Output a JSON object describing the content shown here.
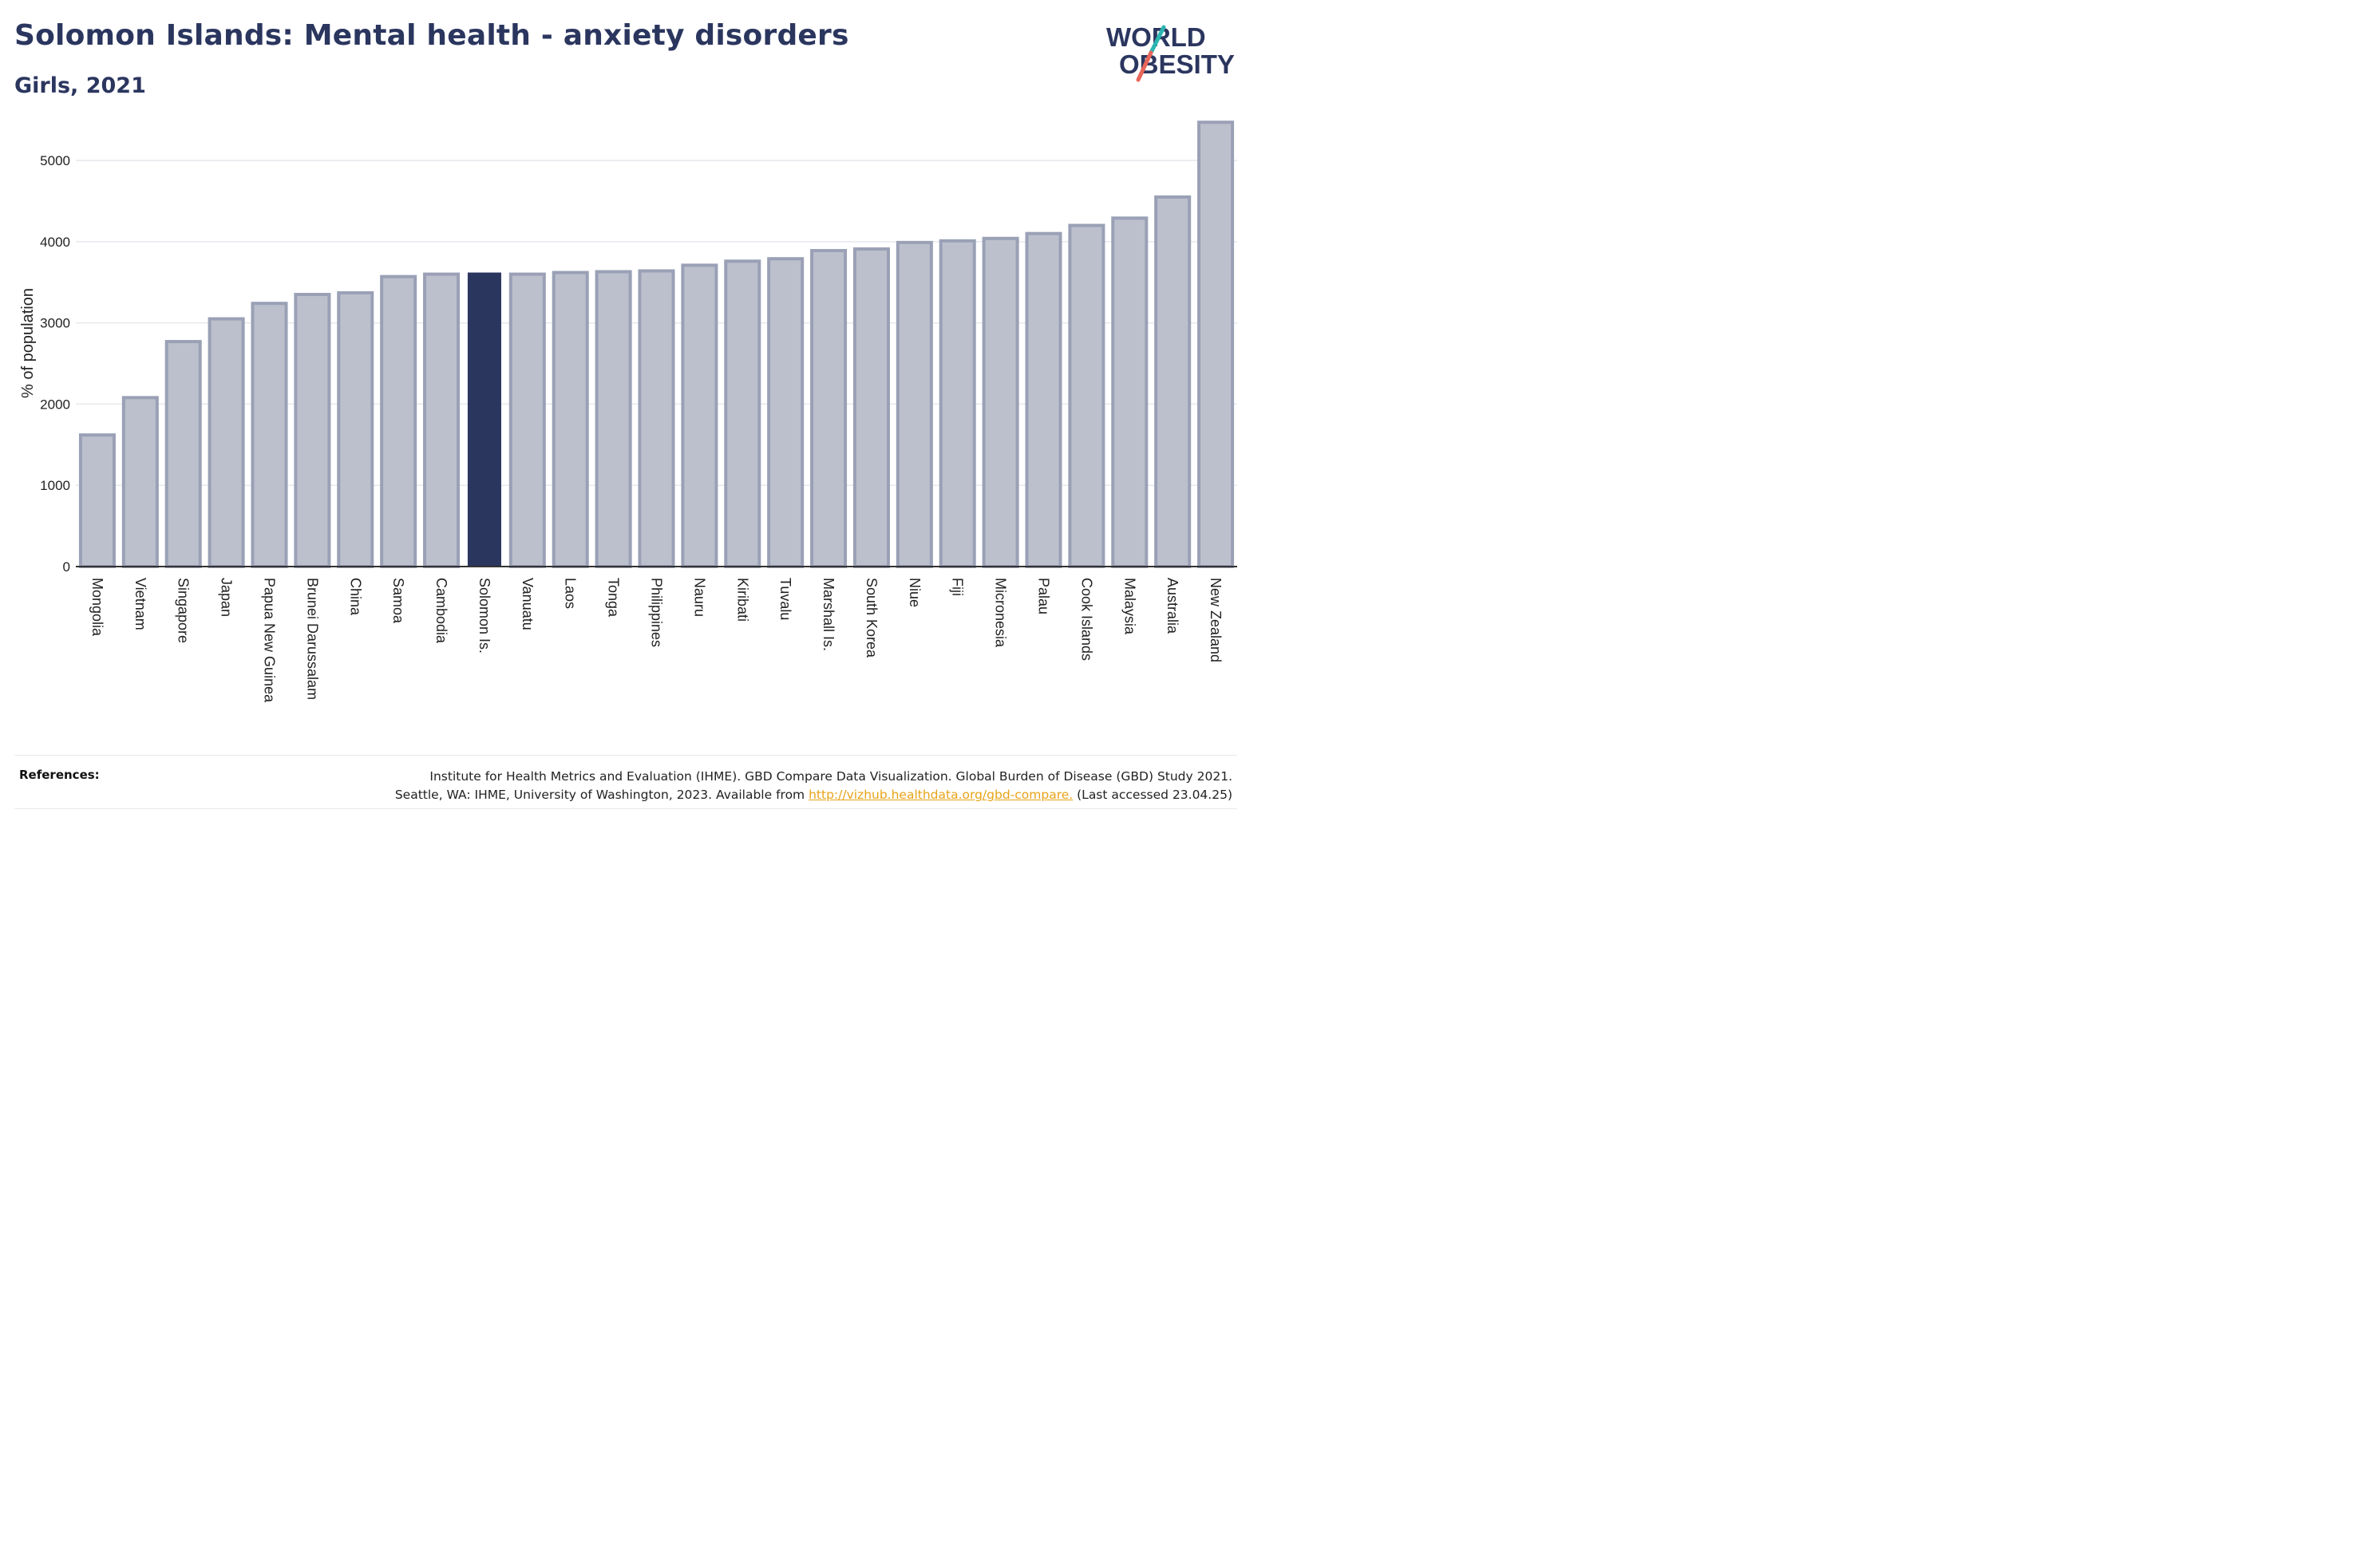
{
  "header": {
    "title": "Solomon Islands: Mental health - anxiety disorders",
    "subtitle": "Girls, 2021"
  },
  "logo": {
    "line1": "WORLD",
    "line2": "OBESITY",
    "colors": {
      "text": "#2b365f",
      "slash_teal": "#2bb5b0",
      "slash_red": "#e8665a"
    }
  },
  "chart_data": {
    "type": "bar",
    "title": "",
    "xlabel": "",
    "ylabel": "% of population",
    "ylim": [
      0,
      5600
    ],
    "yticks": [
      0,
      1000,
      2000,
      3000,
      4000,
      5000
    ],
    "grid": true,
    "highlight": "Solomon Is.",
    "colors": {
      "bar": "#bcc0cd",
      "bar_border": "#9aa1b6",
      "highlight": "#2b365f",
      "grid": "#e6e8ee",
      "axis": "#333333"
    },
    "categories": [
      "Mongolia",
      "Vietnam",
      "Singapore",
      "Japan",
      "Papua New Guinea",
      "Brunei Darussalam",
      "China",
      "Samoa",
      "Cambodia",
      "Solomon Is.",
      "Vanuatu",
      "Laos",
      "Tonga",
      "Philippines",
      "Nauru",
      "Kiribati",
      "Tuvalu",
      "Marshall Is.",
      "South Korea",
      "Niue",
      "Fiji",
      "Micronesia",
      "Palau",
      "Cook Islands",
      "Malaysia",
      "Australia",
      "New Zealand"
    ],
    "values": [
      1620,
      2080,
      2770,
      3050,
      3240,
      3350,
      3370,
      3570,
      3600,
      3620,
      3600,
      3620,
      3630,
      3640,
      3710,
      3760,
      3790,
      3890,
      3910,
      3990,
      4010,
      4040,
      4100,
      4200,
      4290,
      4550,
      5470
    ]
  },
  "references": {
    "label": "References:",
    "line1": "Institute for Health Metrics and Evaluation (IHME). GBD Compare Data Visualization. Global Burden of Disease (GBD) Study 2021.",
    "line2_prefix": "Seattle, WA: IHME, University of Washington, 2023. Available from ",
    "link": "http://vizhub.healthdata.org/gbd-compare.",
    "line2_suffix": " (Last accessed 23.04.25)"
  }
}
